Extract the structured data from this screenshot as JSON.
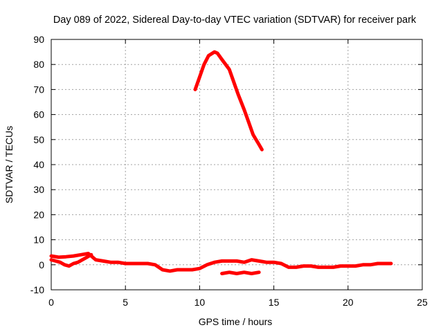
{
  "chart_data": {
    "type": "line",
    "title": "Day 089 of 2022, Sidereal Day-to-day VTEC variation (SDTVAR) for receiver park",
    "xlabel": "GPS time / hours",
    "ylabel": "SDTVAR / TECUs",
    "xlim": [
      0,
      25
    ],
    "ylim": [
      -10,
      90
    ],
    "xticks": [
      0,
      5,
      10,
      15,
      20,
      25
    ],
    "yticks": [
      -10,
      0,
      10,
      20,
      30,
      40,
      50,
      60,
      70,
      80,
      90
    ],
    "grid": true,
    "line_color": "#ff0000",
    "series": [
      {
        "name": "main-trace",
        "x": [
          0,
          0.5,
          1,
          1.5,
          2,
          2.5,
          3,
          3.5,
          4,
          4.5,
          5,
          5.5,
          6,
          6.5,
          7,
          7.5,
          8,
          8.5,
          9,
          9.5,
          10,
          10.5,
          11,
          11.5,
          12,
          12.5,
          13,
          13.5,
          14,
          14.5,
          15,
          15.5,
          16,
          16.5,
          17,
          17.5,
          18,
          18.5,
          19,
          19.5,
          20,
          20.5,
          21,
          21.5,
          22,
          22.5,
          22.9
        ],
        "y": [
          3.5,
          3,
          3.2,
          3.5,
          4,
          4.5,
          2,
          1.5,
          1,
          1,
          0.5,
          0.5,
          0.5,
          0.5,
          0,
          -2,
          -2.5,
          -2,
          -2,
          -2,
          -1.5,
          0,
          1,
          1.5,
          1.5,
          1.5,
          1,
          2,
          1.5,
          1,
          1,
          0.5,
          -1,
          -1,
          -0.5,
          -0.5,
          -1,
          -1,
          -1,
          -0.5,
          -0.5,
          -0.5,
          0,
          0,
          0.5,
          0.5,
          0.5
        ]
      },
      {
        "name": "lower-start-trace",
        "x": [
          0,
          0.3,
          0.6,
          0.9,
          1.2,
          1.5,
          1.8,
          2.1,
          2.4,
          2.7
        ],
        "y": [
          2,
          1.5,
          1,
          0,
          -0.5,
          0.5,
          1,
          2,
          3,
          4
        ]
      },
      {
        "name": "peak-trace",
        "x": [
          9.7,
          10,
          10.3,
          10.6,
          11,
          11.2,
          11.5,
          12,
          12.3,
          12.6,
          13,
          13.3,
          13.6,
          14,
          14.2
        ],
        "y": [
          70,
          75,
          80,
          83.5,
          85,
          84.5,
          82,
          78,
          73,
          68,
          62,
          57,
          52,
          48,
          46
        ]
      },
      {
        "name": "short-negative-trace",
        "x": [
          11.5,
          12,
          12.5,
          13,
          13.5,
          14
        ],
        "y": [
          -3.5,
          -3,
          -3.5,
          -3,
          -3.5,
          -3
        ]
      }
    ]
  }
}
